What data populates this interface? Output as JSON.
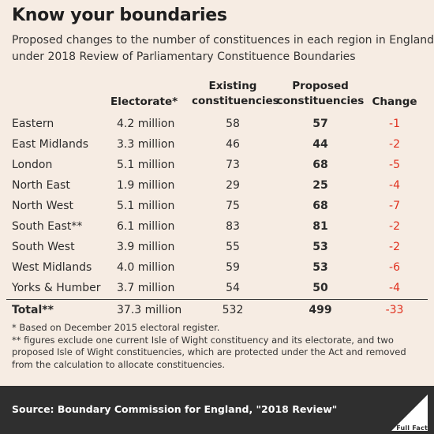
{
  "title": "Know your boundaries",
  "subtitle": [
    "Proposed changes to the number of constituences in each region in England,",
    "under 2018 Review of Parliamentary Constituence Boundaries"
  ],
  "headers": {
    "electorate": "Electorate*",
    "existing_1": "Existing",
    "existing_2": "constituencies",
    "proposed_1": "Proposed",
    "proposed_2": "constituencies",
    "change": "Change"
  },
  "chart_data": {
    "type": "table",
    "columns": [
      "",
      "Electorate*",
      "Existing constituencies",
      "Proposed constituencies",
      "Change"
    ],
    "rows": [
      {
        "region": "Eastern",
        "electorate": "4.2 million",
        "existing": "58",
        "proposed": "57",
        "change": "-1"
      },
      {
        "region": "East Midlands",
        "electorate": "3.3 million",
        "existing": "46",
        "proposed": "44",
        "change": "-2"
      },
      {
        "region": "London",
        "electorate": "5.1 million",
        "existing": "73",
        "proposed": "68",
        "change": "-5"
      },
      {
        "region": "North East",
        "electorate": "1.9 million",
        "existing": "29",
        "proposed": "25",
        "change": "-4"
      },
      {
        "region": "North West",
        "electorate": "5.1 million",
        "existing": "75",
        "proposed": "68",
        "change": "-7"
      },
      {
        "region": "South East**",
        "electorate": "6.1 million",
        "existing": "83",
        "proposed": "81",
        "change": "-2"
      },
      {
        "region": "South West",
        "electorate": "3.9 million",
        "existing": "55",
        "proposed": "53",
        "change": "-2"
      },
      {
        "region": "West Midlands",
        "electorate": "4.0 million",
        "existing": "59",
        "proposed": "53",
        "change": "-6"
      },
      {
        "region": "Yorks & Humber",
        "electorate": "3.7 million",
        "existing": "54",
        "proposed": "50",
        "change": "-4"
      }
    ],
    "total": {
      "region": "Total**",
      "electorate": "37.3 million",
      "existing": "532",
      "proposed": "499",
      "change": "-33"
    }
  },
  "notes": [
    "* Based on December 2015 electoral register.",
    "** figures exclude one current Isle of Wight constituency and its electorate, and two proposed Isle of Wight constituencies, which are protected under the Act and removed from the calculation to allocate constituencies."
  ],
  "source": "Source: Boundary Commission for England, \"2018 Review\"",
  "logo_text": "Full Fact",
  "colors": {
    "background": "#f6ece3",
    "footer": "#2f2f2f",
    "negative": "#e0301e"
  }
}
